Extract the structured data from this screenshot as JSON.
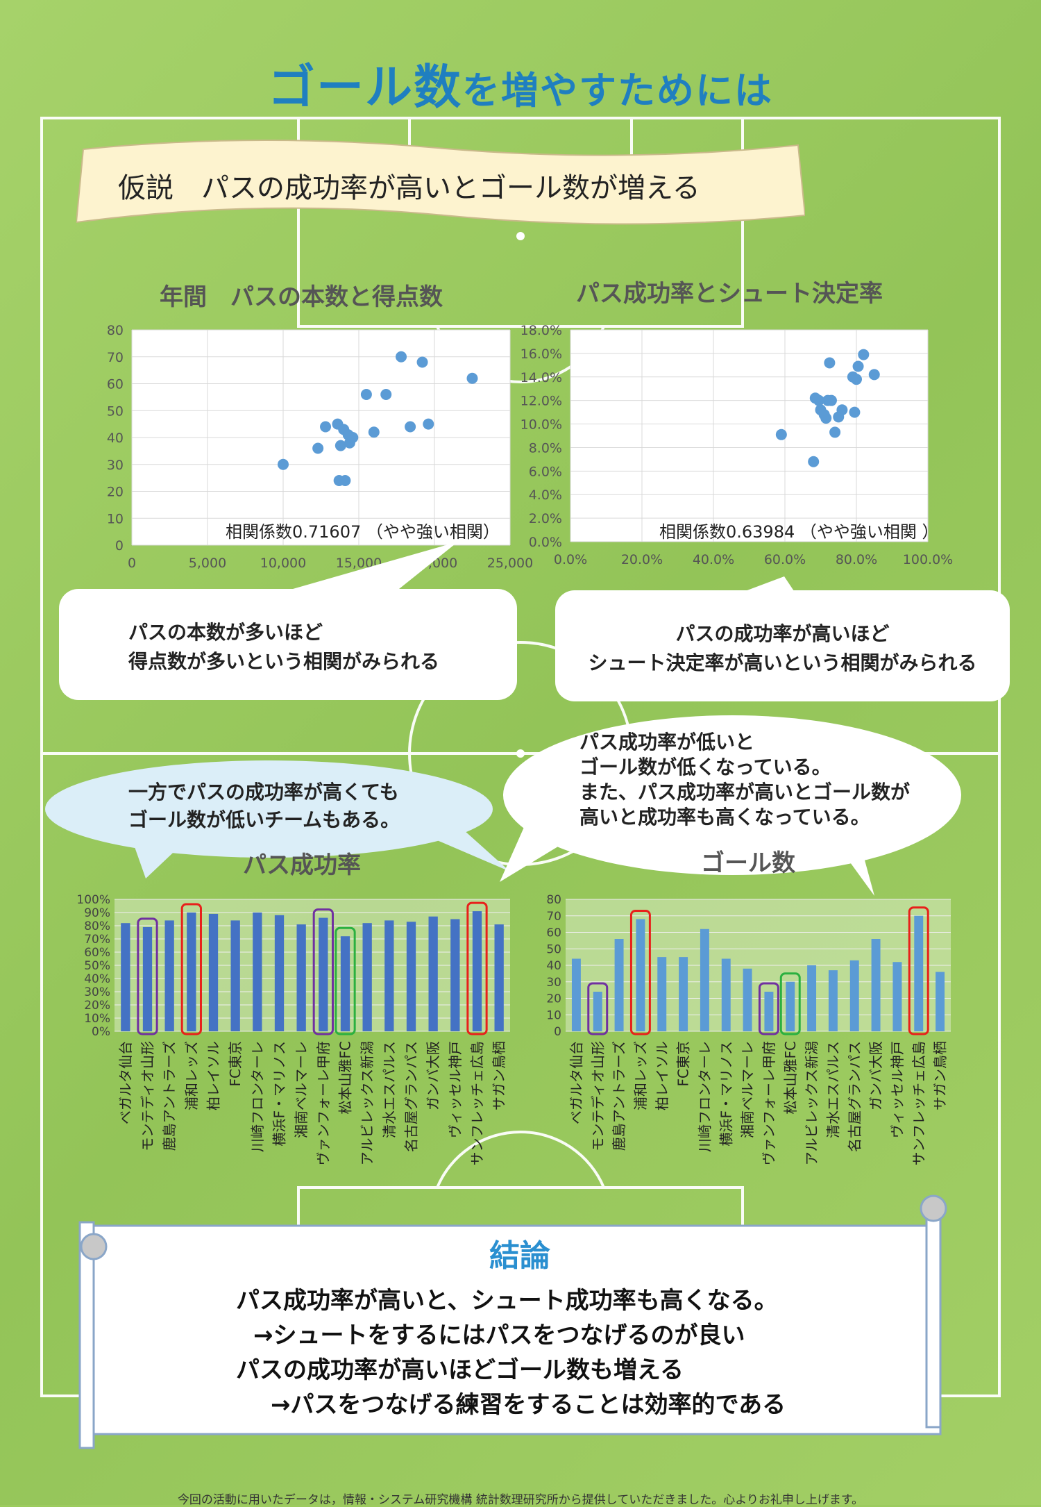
{
  "title": {
    "main": "ゴール数",
    "rest": "を増やすためには"
  },
  "hypothesis": "仮説　パスの成功率が高いとゴール数が増える",
  "chart_data": [
    {
      "type": "scatter",
      "title": "年間　パスの本数と得点数",
      "xlim": [
        0,
        25000
      ],
      "ylim": [
        0,
        80
      ],
      "x_ticks": [
        "0",
        "5,000",
        "10,000",
        "15,000",
        "20,000",
        "25,000"
      ],
      "y_ticks": [
        "0",
        "10",
        "20",
        "30",
        "40",
        "50",
        "60",
        "70",
        "80"
      ],
      "grid": true,
      "annotation": "相関係数0.71607 （やや強い相関）",
      "points": [
        {
          "x": 10000,
          "y": 30
        },
        {
          "x": 12300,
          "y": 36
        },
        {
          "x": 12800,
          "y": 44
        },
        {
          "x": 13600,
          "y": 45
        },
        {
          "x": 13800,
          "y": 37
        },
        {
          "x": 14000,
          "y": 43
        },
        {
          "x": 14300,
          "y": 41
        },
        {
          "x": 14400,
          "y": 38
        },
        {
          "x": 14600,
          "y": 40
        },
        {
          "x": 13700,
          "y": 24
        },
        {
          "x": 14100,
          "y": 24
        },
        {
          "x": 15500,
          "y": 56
        },
        {
          "x": 16000,
          "y": 42
        },
        {
          "x": 16800,
          "y": 56
        },
        {
          "x": 17800,
          "y": 70
        },
        {
          "x": 18400,
          "y": 44
        },
        {
          "x": 19200,
          "y": 68
        },
        {
          "x": 19600,
          "y": 45
        },
        {
          "x": 22500,
          "y": 62
        }
      ]
    },
    {
      "type": "scatter",
      "title": "パス成功率とシュート決定率",
      "xlim": [
        0,
        100
      ],
      "ylim": [
        0,
        18
      ],
      "x_ticks": [
        "0.0%",
        "20.0%",
        "40.0%",
        "60.0%",
        "80.0%",
        "100.0%"
      ],
      "y_ticks": [
        "0.0%",
        "2.0%",
        "4.0%",
        "6.0%",
        "8.0%",
        "10.0%",
        "12.0%",
        "14.0%",
        "16.0%",
        "18.0%"
      ],
      "grid": true,
      "annotation": "相関係数0.63984 （やや強い相関 ）",
      "points": [
        {
          "x": 59,
          "y": 9.1
        },
        {
          "x": 68,
          "y": 6.8
        },
        {
          "x": 68.5,
          "y": 12.2
        },
        {
          "x": 69.5,
          "y": 12.0
        },
        {
          "x": 70,
          "y": 11.2
        },
        {
          "x": 71,
          "y": 10.8
        },
        {
          "x": 71.5,
          "y": 10.5
        },
        {
          "x": 72,
          "y": 12.0
        },
        {
          "x": 72.5,
          "y": 15.2
        },
        {
          "x": 73,
          "y": 12.0
        },
        {
          "x": 74,
          "y": 9.3
        },
        {
          "x": 75,
          "y": 10.6
        },
        {
          "x": 76,
          "y": 11.2
        },
        {
          "x": 79,
          "y": 14.0
        },
        {
          "x": 79.5,
          "y": 11.0
        },
        {
          "x": 80,
          "y": 13.8
        },
        {
          "x": 80.5,
          "y": 14.9
        },
        {
          "x": 82,
          "y": 15.9
        },
        {
          "x": 85,
          "y": 14.2
        }
      ]
    },
    {
      "type": "bar",
      "title": "パス成功率",
      "categories": [
        "ベガルタ仙台",
        "モンテディオ山形",
        "鹿島アントラーズ",
        "浦和レッズ",
        "柏レイソル",
        "FC東京",
        "川崎フロンターレ",
        "横浜F・マリノス",
        "湘南ベルマーレ",
        "ヴァンフォーレ甲府",
        "松本山雅FC",
        "アルビレックス新潟",
        "清水エスパルス",
        "名古屋グランパス",
        "ガンバ大阪",
        "ヴィッセル神戸",
        "サンフレッチェ広島",
        "サガン鳥栖"
      ],
      "values": [
        82,
        79,
        84,
        90,
        89,
        84,
        90,
        88,
        81,
        86,
        72,
        82,
        84,
        83,
        87,
        85,
        91,
        81
      ],
      "ylim": [
        0,
        100
      ],
      "y_ticks": [
        "0%",
        "10%",
        "20%",
        "30%",
        "40%",
        "50%",
        "60%",
        "70%",
        "80%",
        "90%",
        "100%"
      ],
      "grid": true,
      "highlights": [
        {
          "index": 1,
          "color": "#7030a0"
        },
        {
          "index": 3,
          "color": "#e8201a"
        },
        {
          "index": 9,
          "color": "#7030a0"
        },
        {
          "index": 10,
          "color": "#2bb040"
        },
        {
          "index": 16,
          "color": "#e8201a"
        }
      ]
    },
    {
      "type": "bar",
      "title": "ゴール数",
      "categories": [
        "ベガルタ仙台",
        "モンテディオ山形",
        "鹿島アントラーズ",
        "浦和レッズ",
        "柏レイソル",
        "FC東京",
        "川崎フロンターレ",
        "横浜F・マリノス",
        "湘南ベルマーレ",
        "ヴァンフォーレ甲府",
        "松本山雅FC",
        "アルビレックス新潟",
        "清水エスパルス",
        "名古屋グランパス",
        "ガンバ大阪",
        "ヴィッセル神戸",
        "サンフレッチェ広島",
        "サガン鳥栖"
      ],
      "values": [
        44,
        24,
        56,
        68,
        45,
        45,
        62,
        44,
        38,
        24,
        30,
        40,
        37,
        43,
        56,
        42,
        70,
        36
      ],
      "ylim": [
        0,
        80
      ],
      "y_ticks": [
        "0",
        "10",
        "20",
        "30",
        "40",
        "50",
        "60",
        "70",
        "80"
      ],
      "grid": true,
      "highlights": [
        {
          "index": 1,
          "color": "#7030a0"
        },
        {
          "index": 3,
          "color": "#e8201a"
        },
        {
          "index": 9,
          "color": "#7030a0"
        },
        {
          "index": 10,
          "color": "#2bb040"
        },
        {
          "index": 16,
          "color": "#e8201a"
        }
      ]
    }
  ],
  "bubbles": {
    "left_mid": [
      "パスの本数が多いほど",
      "得点数が多いという相関がみられる"
    ],
    "right_mid": [
      "パスの成功率が高いほど",
      "シュート決定率が高いという相関がみられる"
    ],
    "left_low": [
      "一方でパスの成功率が高くても",
      "ゴール数が低いチームもある。"
    ],
    "right_low": [
      "パス成功率が低いと",
      "ゴール数が低くなっている。",
      "また、パス成功率が高いとゴール数が",
      "高いと成功率も高くなっている。"
    ]
  },
  "conclusion": {
    "title": "結論",
    "lines": [
      "パス成功率が高いと、シュート成功率も高くなる。",
      "→シュートをするにはパスをつなげるのが良い",
      "パスの成功率が高いほどゴール数も増える",
      "→パスをつなげる練習をすることは効率的である"
    ]
  },
  "footer": "今回の活動に用いたデータは，情報・システム研究機構 統計数理研究所から提供していただきました。心よりお礼申し上げます。",
  "colors": {
    "title": "#1f7fc0",
    "bar": "#4472c4",
    "bar_light": "#5b9bd5",
    "point": "#5b9bd5",
    "banner": "#fdf3cf"
  }
}
